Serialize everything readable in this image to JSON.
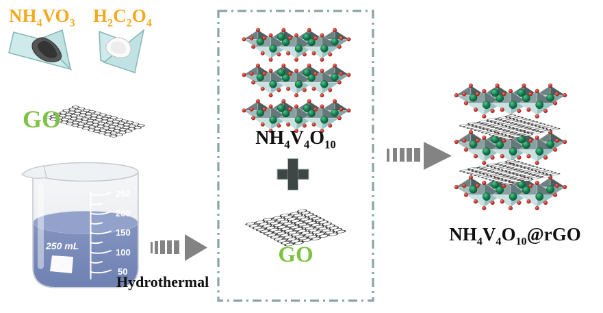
{
  "labels": {
    "reagent1": [
      "NH",
      "4",
      "VO",
      "3"
    ],
    "reagent2": [
      "H",
      "2",
      "C",
      "2",
      "O",
      "4"
    ],
    "go_precursor": "GO",
    "go_in_box": "GO",
    "intermediate": [
      "NH",
      "4",
      "V",
      "4",
      "O",
      "10"
    ],
    "product": [
      "NH",
      "4",
      "V",
      "4",
      "O",
      "10",
      "@rGO"
    ],
    "process": "Hydrothermal"
  },
  "beaker": {
    "volume_label": "250 mL",
    "graduations": [
      "250",
      "200",
      "150",
      "100",
      "50"
    ]
  },
  "colors": {
    "reagent_label_orange": "#F5A91F",
    "go_label_green": "#7DC242",
    "label_text": "#111111",
    "dashed_box_border": "#8BA2A7",
    "arrow_gray": "#838383",
    "plus_sign": "#3F4646",
    "liquid_blue": "#7F90BD",
    "weighing_paper_teal": "#CFEAEA",
    "vanadium_sphere_green": "#117A4E",
    "oxygen_sphere_red": "#C62F28",
    "octahedron_teal": "#9CC3C3",
    "octahedron_gray": "#8AA0A0"
  },
  "icons": {
    "arrow1": "dashed-right-arrow",
    "arrow2": "dashed-right-arrow",
    "plus": "plus-sign"
  }
}
